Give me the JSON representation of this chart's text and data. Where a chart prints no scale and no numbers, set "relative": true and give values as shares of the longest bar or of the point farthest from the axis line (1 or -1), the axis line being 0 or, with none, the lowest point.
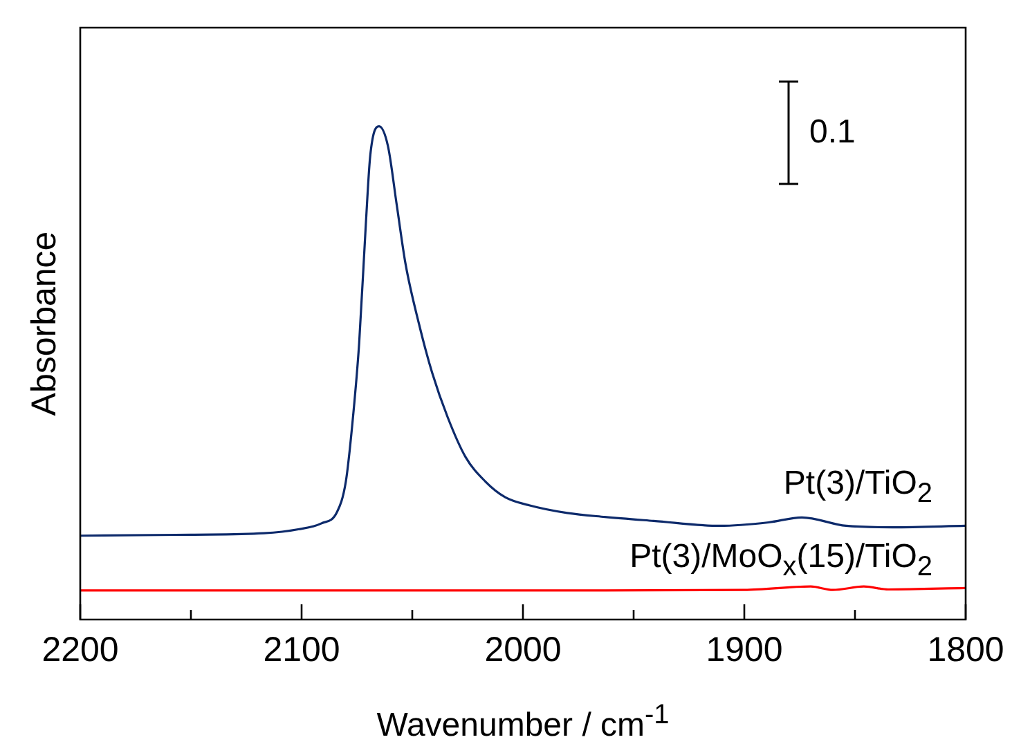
{
  "chart_data": {
    "type": "line",
    "xlabel": "Wavenumber / cm$^{-1}$",
    "ylabel": "Absorbance",
    "relative": true,
    "xlim": [
      2200,
      1800
    ],
    "xticks": [
      2200,
      {
        "value": 2150,
        "label": null
      },
      2100,
      {
        "value": 2050,
        "label": null
      },
      2000,
      {
        "value": 1950,
        "label": null
      },
      1900,
      {
        "value": 1850,
        "label": null
      },
      1800
    ],
    "legend": false,
    "marker": "none",
    "line_style": "solid",
    "annotations": [
      "0.1"
    ],
    "series": [
      {
        "name": "Pt(3)/TiO$_{2}$",
        "color": "#0d2a6b",
        "x": [
          2200,
          2150,
          2117,
          2101.5,
          2091,
          2084,
          2080,
          2077,
          2074,
          2071,
          2069,
          2065,
          2061,
          2057,
          2053,
          2047,
          2041,
          2034,
          2026,
          2017,
          2008,
          1997.5,
          1980,
          1963,
          1941,
          1911,
          1889,
          1874,
          1854,
          1833,
          1800
        ],
        "values": [
          0.17,
          0.172,
          0.175,
          0.183,
          0.195,
          0.218,
          0.28,
          0.4,
          0.56,
          0.8,
          0.94,
          1,
          0.96,
          0.84,
          0.72,
          0.6,
          0.5,
          0.41,
          0.33,
          0.28,
          0.248,
          0.232,
          0.216,
          0.208,
          0.2,
          0.19,
          0.197,
          0.207,
          0.19,
          0.187,
          0.19
        ]
      },
      {
        "name": "Pt(3)/MoO$_{x}$(15)/TiO$_{2}$",
        "color": "#ff0000",
        "x": [
          2200,
          2100,
          2000,
          1900,
          1870,
          1860,
          1846,
          1835,
          1800
        ],
        "values": [
          0.059,
          0.059,
          0.059,
          0.06,
          0.067,
          0.06,
          0.067,
          0.061,
          0.064
        ]
      }
    ]
  }
}
